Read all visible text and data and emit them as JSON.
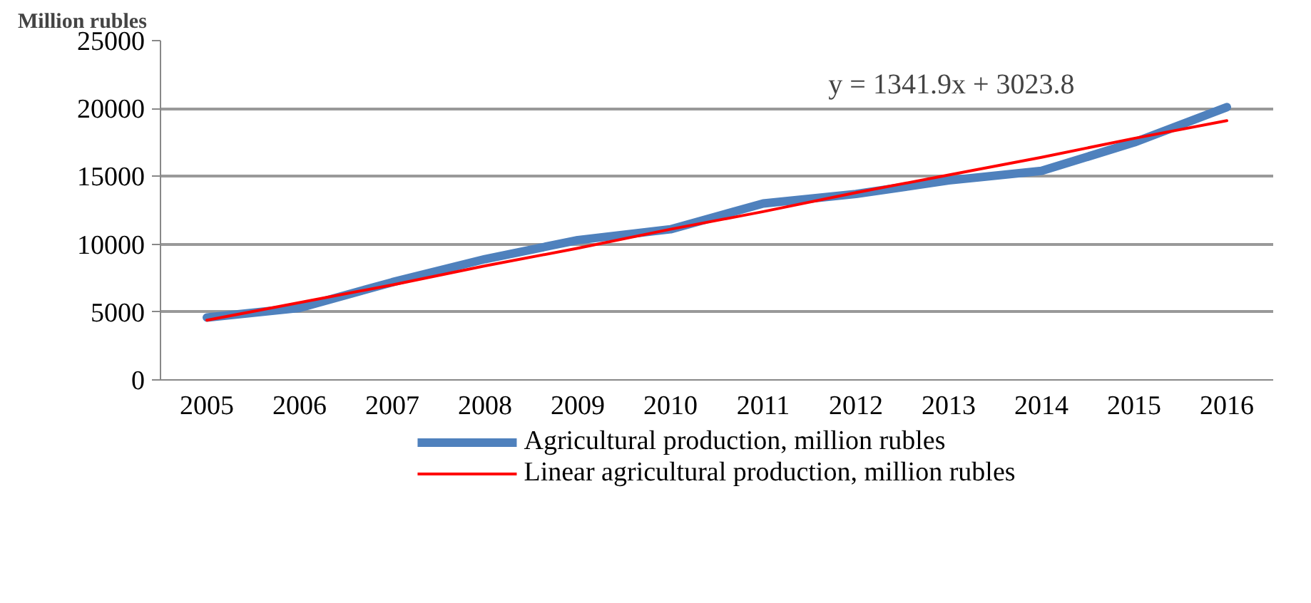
{
  "chart_data": {
    "type": "line",
    "ylabel": "Million rubles",
    "categories": [
      "2005",
      "2006",
      "2007",
      "2008",
      "2009",
      "2010",
      "2011",
      "2012",
      "2013",
      "2014",
      "2015",
      "2016"
    ],
    "series": [
      {
        "name": "Agricultural production, million rubles",
        "color": "#4f81bd",
        "values": [
          4600,
          5300,
          7200,
          8900,
          10300,
          11100,
          13000,
          13700,
          14700,
          15400,
          17500,
          20100
        ]
      },
      {
        "name": "Linear agricultural production, million rubles",
        "color": "#ff0000",
        "values": [
          4400,
          5700,
          7000,
          8400,
          9700,
          11100,
          12400,
          13800,
          15100,
          16400,
          17800,
          19100
        ]
      }
    ],
    "ylim": [
      0,
      25000
    ],
    "yticks": [
      0,
      5000,
      10000,
      15000,
      20000,
      25000
    ],
    "grid": "y",
    "legend": "bottom",
    "annotations": [
      "y = 1341.9x + 3023.8"
    ]
  }
}
